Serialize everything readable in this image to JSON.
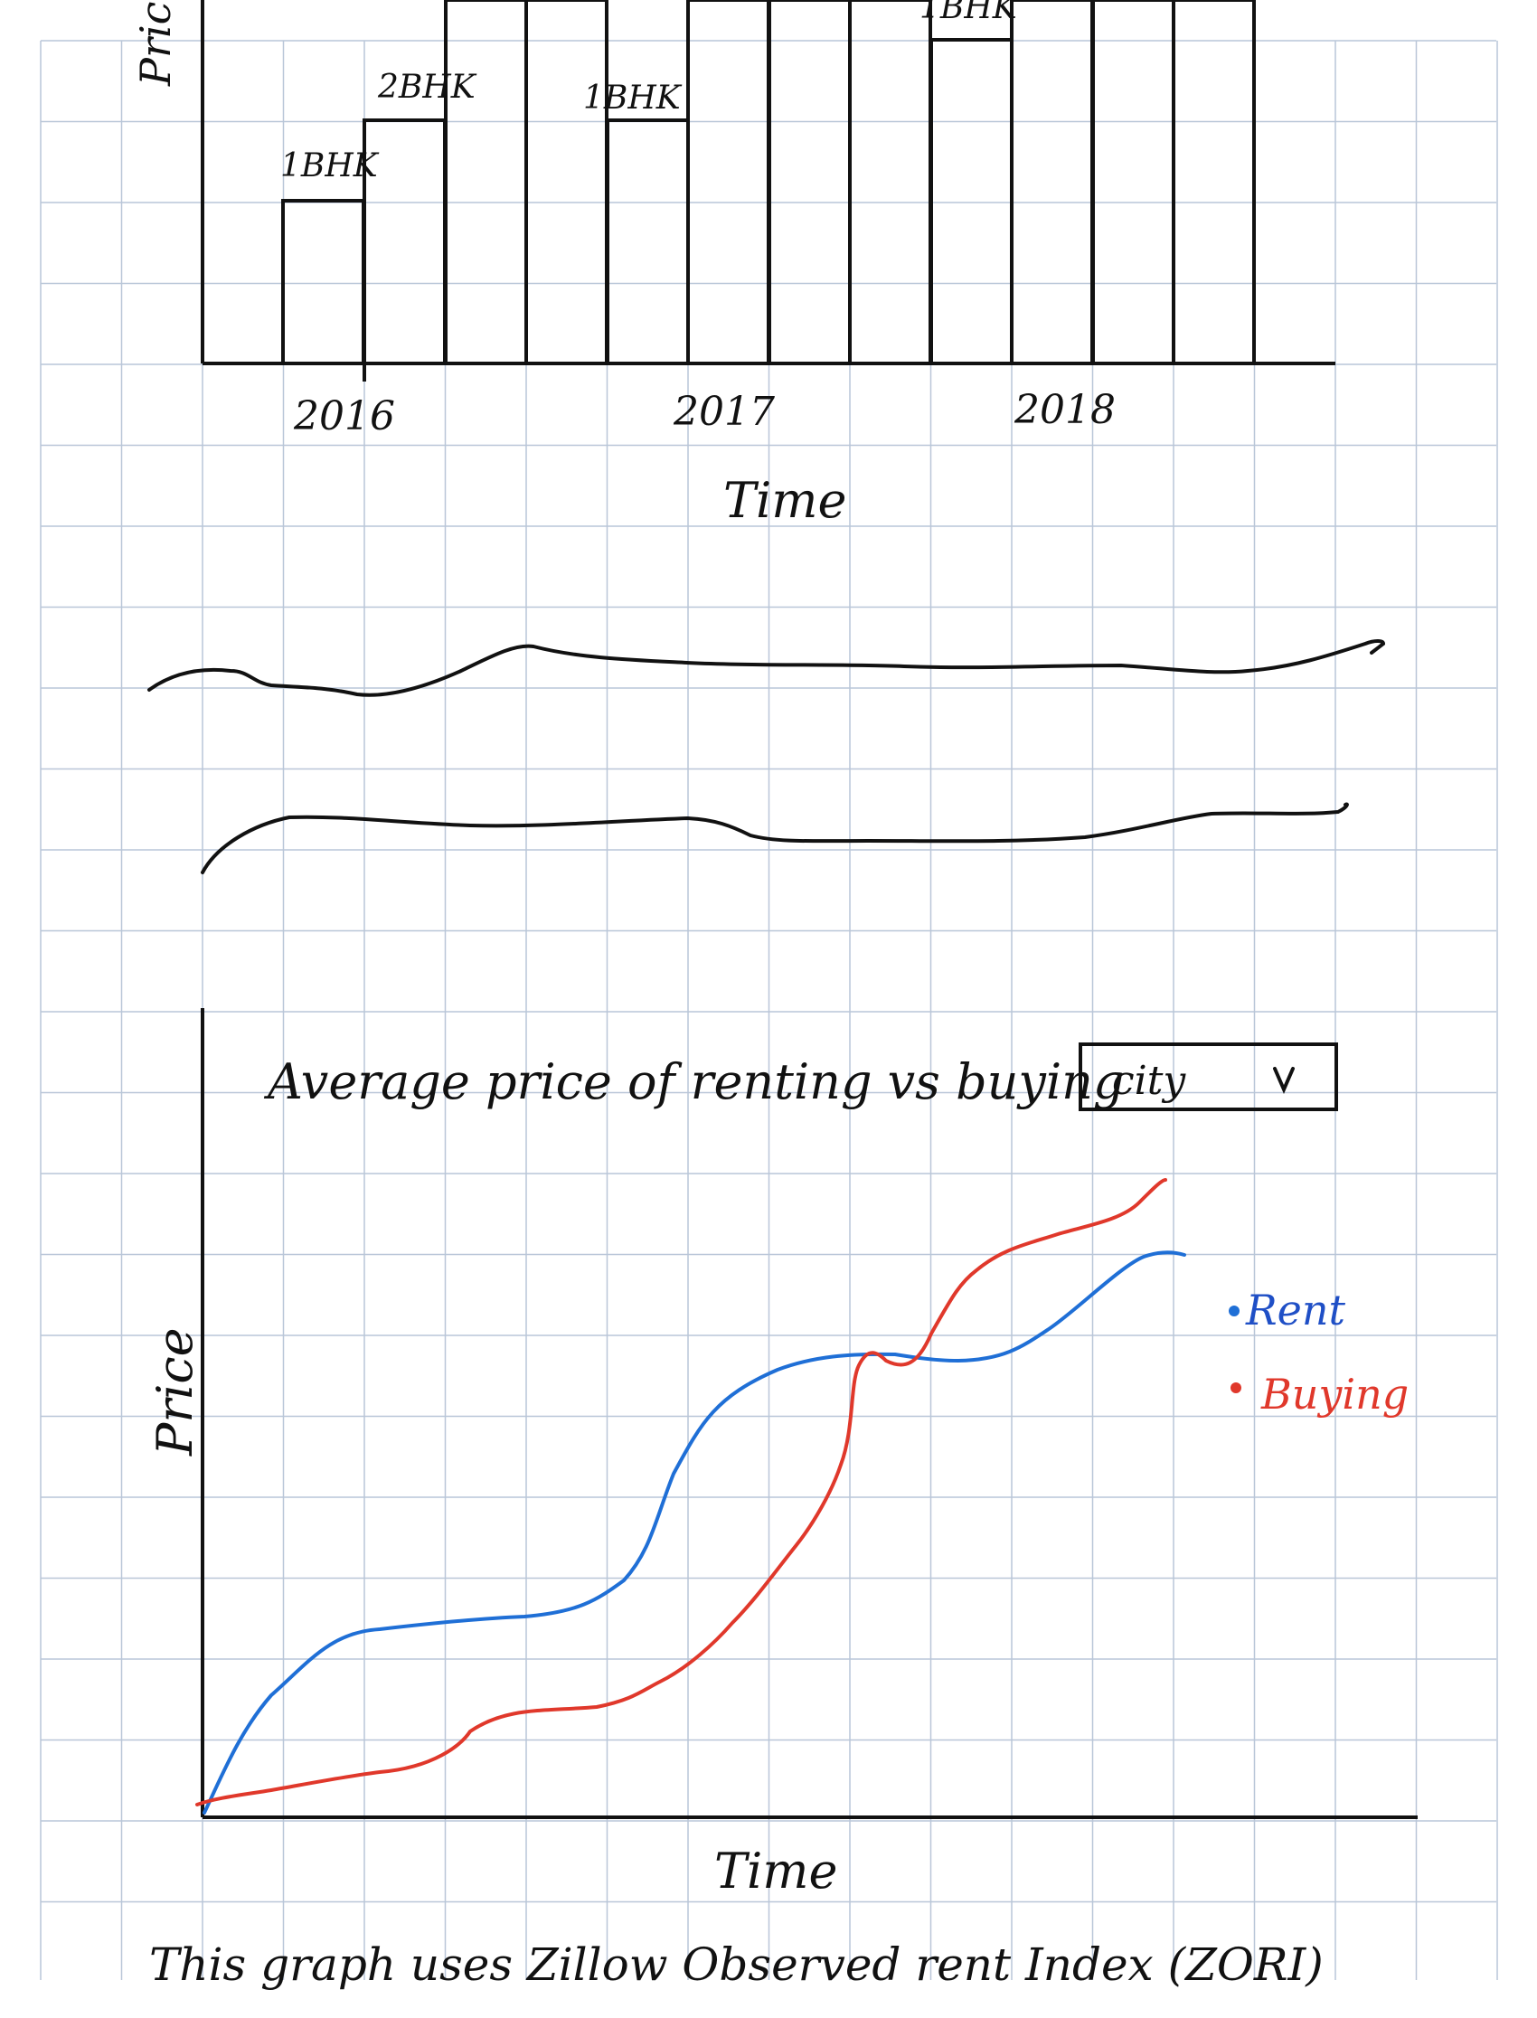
{
  "chart_data": [
    {
      "type": "bar",
      "title": "",
      "ylabel": "Price",
      "xlabel": "Time",
      "x_tick_labels": [
        "2016",
        "2017",
        "2018"
      ],
      "bar_labels": [
        "1BHK",
        "2BHK",
        "1BHK",
        "1BHK"
      ],
      "grid": true
    },
    {
      "type": "line",
      "title": "",
      "series_count": 2,
      "axes": false
    },
    {
      "type": "line",
      "title": "Average price of renting vs buying",
      "xlabel": "Time",
      "ylabel": "Price",
      "legend_position": "right",
      "series": [
        {
          "name": "Rent",
          "color": "#1f6fd6"
        },
        {
          "name": "Buying",
          "color": "#e0382b"
        }
      ],
      "grid": true
    }
  ],
  "dropdown": {
    "value": "city",
    "icon": "chevron-down-icon"
  },
  "footnote": "This graph uses Zillow Observed rent Index (ZORI)"
}
